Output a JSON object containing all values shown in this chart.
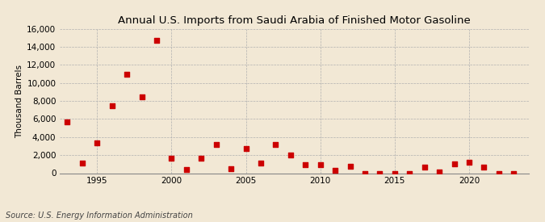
{
  "title": "Annual U.S. Imports from Saudi Arabia of Finished Motor Gasoline",
  "ylabel": "Thousand Barrels",
  "source": "Source: U.S. Energy Information Administration",
  "background_color": "#f2e8d5",
  "plot_bg_color": "#f2e8d5",
  "marker_color": "#cc0000",
  "years": [
    1993,
    1994,
    1995,
    1996,
    1997,
    1998,
    1999,
    2000,
    2001,
    2002,
    2003,
    2004,
    2005,
    2006,
    2007,
    2008,
    2009,
    2010,
    2011,
    2012,
    2013,
    2014,
    2015,
    2016,
    2017,
    2018,
    2019,
    2020,
    2021,
    2022,
    2023
  ],
  "values": [
    5700,
    1100,
    3400,
    7500,
    11000,
    8500,
    14700,
    1700,
    400,
    1700,
    3200,
    500,
    2700,
    1100,
    3200,
    2000,
    900,
    900,
    300,
    800,
    0,
    0,
    0,
    0,
    700,
    100,
    1000,
    1200,
    700,
    0,
    0
  ],
  "ylim": [
    0,
    16000
  ],
  "yticks": [
    0,
    2000,
    4000,
    6000,
    8000,
    10000,
    12000,
    14000,
    16000
  ],
  "xticks": [
    1995,
    2000,
    2005,
    2010,
    2015,
    2020
  ],
  "xlim": [
    1992.5,
    2024
  ]
}
